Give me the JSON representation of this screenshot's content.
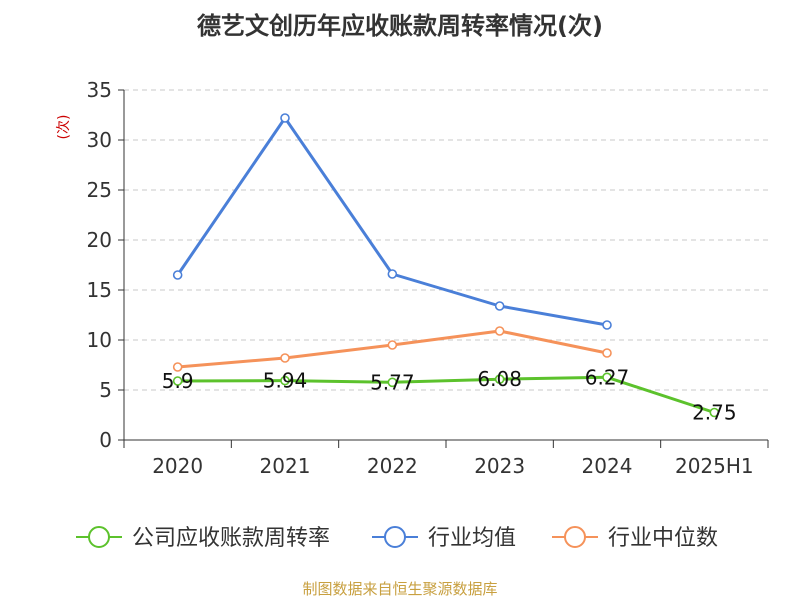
{
  "chart_data": {
    "type": "line",
    "title": "德艺文创历年应收账款周转率情况(次)",
    "ylabel": "(次)",
    "categories": [
      "2020",
      "2021",
      "2022",
      "2023",
      "2024",
      "2025H1"
    ],
    "y_ticks": [
      "0",
      "5",
      "10",
      "15",
      "20",
      "25",
      "30",
      "35"
    ],
    "ylim": [
      0,
      35
    ],
    "grid": "horizontal-dashed",
    "legend_position": "bottom",
    "series": [
      {
        "name": "公司应收账款周转率",
        "color": "#5cc22c",
        "values": [
          5.9,
          5.94,
          5.77,
          6.08,
          6.27,
          2.75
        ],
        "labels": [
          "5.9",
          "5.94",
          "5.77",
          "6.08",
          "6.27",
          "2.75"
        ]
      },
      {
        "name": "行业均值",
        "color": "#4a7fd8",
        "values": [
          16.5,
          32.2,
          16.6,
          13.4,
          11.5,
          null
        ]
      },
      {
        "name": "行业中位数",
        "color": "#f5925a",
        "values": [
          7.3,
          8.2,
          9.5,
          10.9,
          8.7,
          null
        ]
      }
    ],
    "source": "制图数据来自恒生聚源数据库"
  }
}
